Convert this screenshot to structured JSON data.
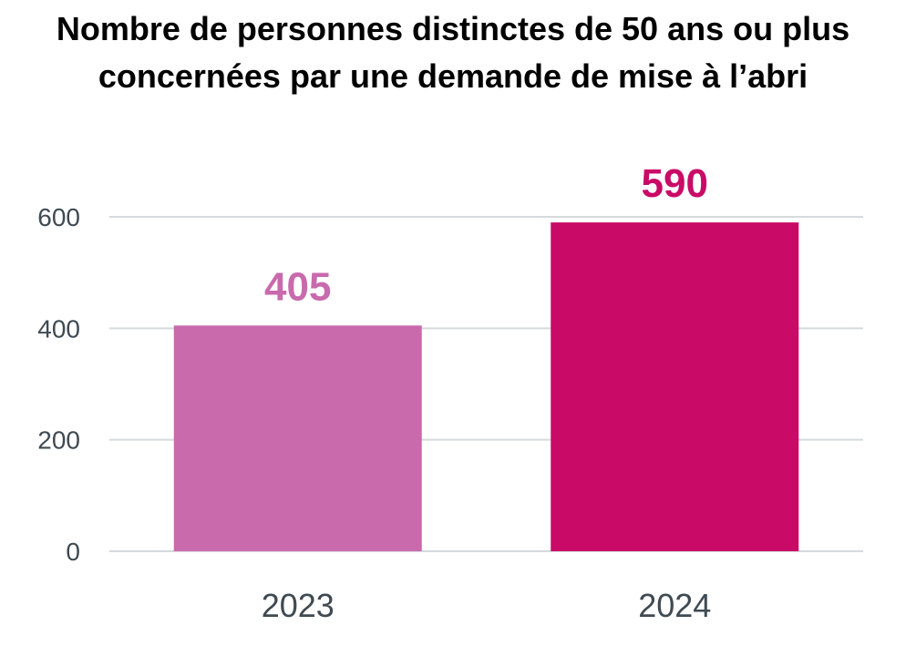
{
  "chart_data": {
    "type": "bar",
    "title_lines": [
      "Nombre de personnes distinctes de 50 ans ou plus",
      "concernées par une demande de mise à l’abri"
    ],
    "categories": [
      "2023",
      "2024"
    ],
    "values": [
      405,
      590
    ],
    "data_labels": [
      "405",
      "590"
    ],
    "bar_colors": [
      "#c96aad",
      "#c90a66"
    ],
    "ylim": [
      0,
      600
    ],
    "yticks": [
      0,
      200,
      400,
      600
    ],
    "ytick_labels": [
      "0",
      "200",
      "400",
      "600"
    ],
    "grid": true,
    "gridline_color": "#d5dadd",
    "axis_text_color": "#3f4a52",
    "xlabel": "",
    "ylabel": ""
  }
}
